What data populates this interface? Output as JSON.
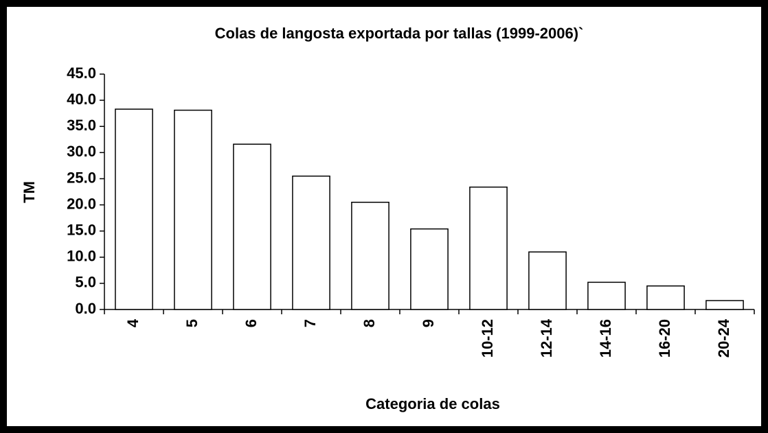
{
  "chart_data": {
    "type": "bar",
    "title": "Colas de langosta exportada por tallas (1999-2006)`",
    "x_label": "Categoria de colas",
    "y_label": "TM",
    "categories": [
      "4",
      "5",
      "6",
      "7",
      "8",
      "9",
      "10-12",
      "12-14",
      "14-16",
      "16-20",
      "20-24"
    ],
    "values": [
      38.3,
      38.1,
      31.6,
      25.5,
      20.5,
      15.4,
      23.4,
      11.0,
      5.2,
      4.5,
      1.7
    ],
    "color": "#ffffff",
    "ylim": [
      0,
      45
    ],
    "yticks": [
      {
        "value": 0,
        "label": "0.0"
      },
      {
        "value": 5,
        "label": "5.0"
      },
      {
        "value": 10,
        "label": "10.0"
      },
      {
        "value": 15,
        "label": "15.0"
      },
      {
        "value": 20,
        "label": "20.0"
      },
      {
        "value": 25,
        "label": "25.0"
      },
      {
        "value": 30,
        "label": "30.0"
      },
      {
        "value": 35,
        "label": "35.0"
      },
      {
        "value": 40,
        "label": "40.0"
      },
      {
        "value": 45,
        "label": "45.0"
      }
    ],
    "grid": false
  }
}
